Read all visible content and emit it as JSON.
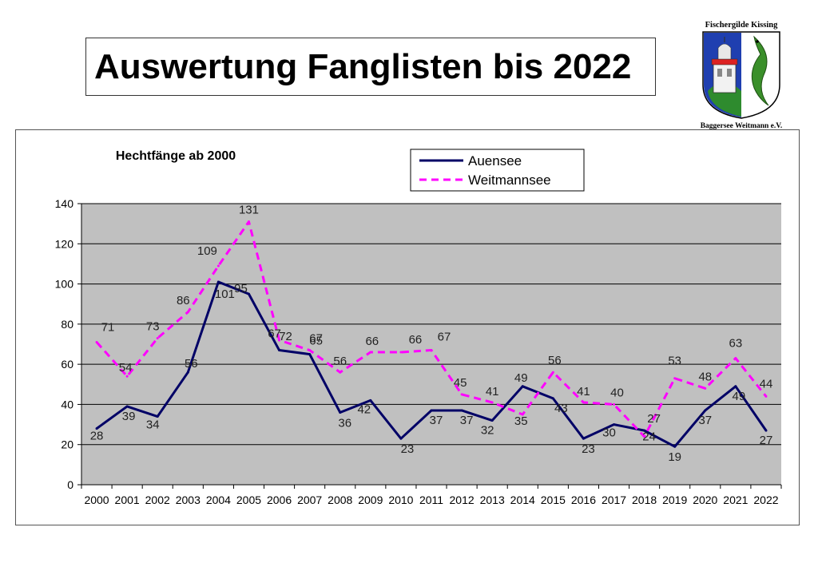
{
  "slide": {
    "title": "Auswertung Fanglisten bis 2022"
  },
  "logo": {
    "text_top": "Fischergilde Kissing",
    "text_bottom": "Baggersee Weitmann e.V."
  },
  "chart_data": {
    "type": "line",
    "title": "Hechtfänge ab 2000",
    "xlabel": "",
    "ylabel": "",
    "categories": [
      "2000",
      "2001",
      "2002",
      "2003",
      "2004",
      "2005",
      "2006",
      "2007",
      "2008",
      "2009",
      "2010",
      "2011",
      "2012",
      "2013",
      "2014",
      "2015",
      "2016",
      "2017",
      "2018",
      "2019",
      "2020",
      "2021",
      "2022"
    ],
    "ylim": [
      0,
      140
    ],
    "yticks": [
      0,
      20,
      40,
      60,
      80,
      100,
      120,
      140
    ],
    "grid": true,
    "legend_position": "top",
    "plot_background": "#c0c0c0",
    "series": [
      {
        "name": "Auensee",
        "color": "#000066",
        "dash": "solid",
        "values": [
          28,
          39,
          34,
          56,
          101,
          95,
          67,
          65,
          36,
          42,
          23,
          37,
          37,
          32,
          49,
          43,
          23,
          30,
          27,
          19,
          37,
          49,
          27
        ]
      },
      {
        "name": "Weitmannsee",
        "color": "#ff00ff",
        "dash": "dashed",
        "values": [
          71,
          54,
          73,
          86,
          109,
          131,
          72,
          67,
          56,
          66,
          66,
          67,
          45,
          41,
          35,
          56,
          41,
          40,
          24,
          53,
          48,
          63,
          44
        ]
      }
    ]
  }
}
